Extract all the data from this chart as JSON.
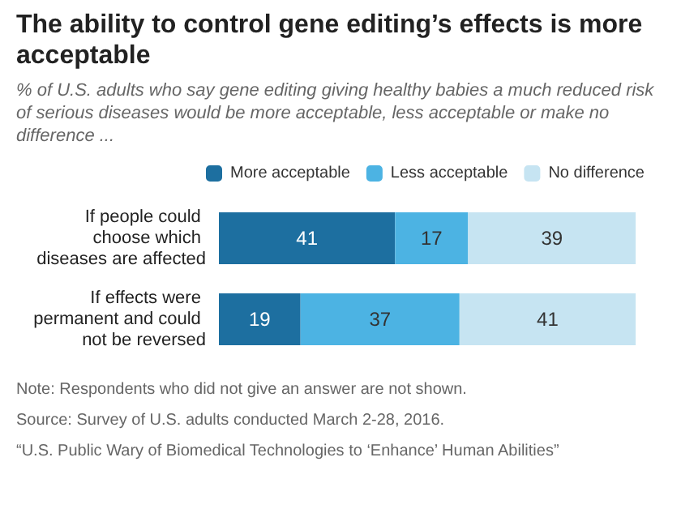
{
  "chart_data": {
    "type": "bar",
    "orientation": "horizontal",
    "stacked": true,
    "title": "The ability to control gene editing’s effects is more acceptable",
    "subtitle": "% of U.S. adults who say gene editing giving healthy babies a much reduced risk of serious diseases would be more acceptable, less acceptable or make no difference ...",
    "categories": [
      "If people could choose which diseases are affected",
      "If effects were permanent and could not be reversed"
    ],
    "series": [
      {
        "name": "More acceptable",
        "color": "#1d6fa0",
        "values": [
          41,
          19
        ]
      },
      {
        "name": "Less acceptable",
        "color": "#4cb3e3",
        "values": [
          17,
          37
        ]
      },
      {
        "name": "No difference",
        "color": "#c6e4f2",
        "values": [
          39,
          41
        ]
      }
    ],
    "data_labels": true,
    "legend": "top",
    "tick_labels": "y",
    "annotations": [
      "Note: Respondents who did not give an answer are not shown.",
      "Source: Survey of U.S. adults conducted March 2-28, 2016.",
      "“U.S. Public Wary of Biomedical Technologies to ‘Enhance’ Human Abilities”"
    ]
  }
}
